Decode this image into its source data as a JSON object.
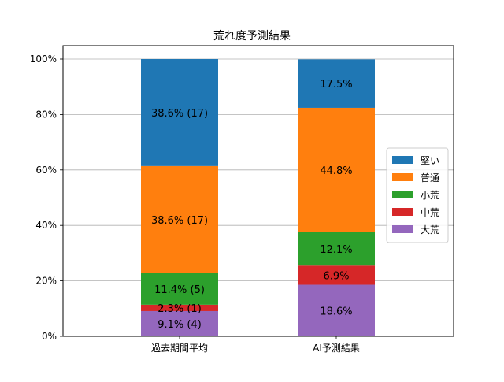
{
  "chart_data": {
    "type": "bar",
    "stacked": true,
    "title": "荒れ度予測結果",
    "xlabel": "",
    "ylabel": "",
    "ylim": [
      0,
      100
    ],
    "y_ticks": [
      "0%",
      "20%",
      "40%",
      "60%",
      "80%",
      "100%"
    ],
    "grid": "horizontal",
    "legend_position": "right",
    "categories": [
      "過去期間平均",
      "AI予測結果"
    ],
    "series": [
      {
        "name": "大荒",
        "color": "#9467bd",
        "values": [
          9.1,
          18.6
        ],
        "labels": [
          "9.1% (4)",
          "18.6%"
        ]
      },
      {
        "name": "中荒",
        "color": "#d62728",
        "values": [
          2.3,
          6.9
        ],
        "labels": [
          "2.3% (1)",
          "6.9%"
        ]
      },
      {
        "name": "小荒",
        "color": "#2ca02c",
        "values": [
          11.4,
          12.1
        ],
        "labels": [
          "11.4% (5)",
          "12.1%"
        ]
      },
      {
        "name": "普通",
        "color": "#ff7f0e",
        "values": [
          38.6,
          44.8
        ],
        "labels": [
          "38.6% (17)",
          "44.8%"
        ]
      },
      {
        "name": "堅い",
        "color": "#1f77b4",
        "values": [
          38.6,
          17.5
        ],
        "labels": [
          "38.6% (17)",
          "17.5%"
        ]
      }
    ],
    "legend_order": [
      "堅い",
      "普通",
      "小荒",
      "中荒",
      "大荒"
    ]
  }
}
